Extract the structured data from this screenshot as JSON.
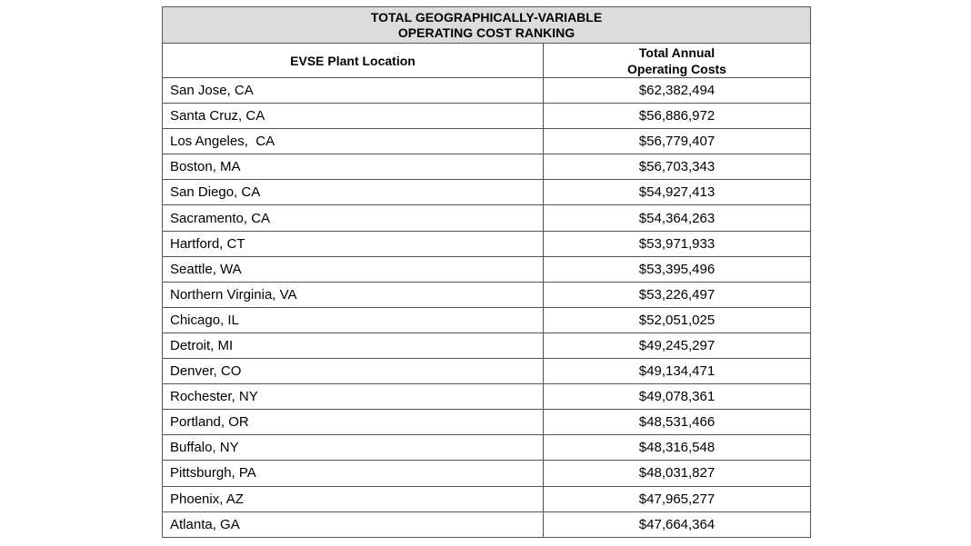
{
  "title": {
    "lines": [
      "TOTAL GEOGRAPHICALLY-VARIABLE",
      "OPERATING COST RANKING"
    ]
  },
  "columns": [
    {
      "lines": [
        "EVSE Plant Location"
      ]
    },
    {
      "lines": [
        "Total Annual",
        "Operating Costs"
      ]
    }
  ],
  "rows": [
    [
      "San Jose, CA",
      "$62,382,494"
    ],
    [
      "Santa Cruz, CA",
      "$56,886,972"
    ],
    [
      "Los Angeles,  CA",
      "$56,779,407"
    ],
    [
      "Boston, MA",
      "$56,703,343"
    ],
    [
      "San Diego, CA",
      "$54,927,413"
    ],
    [
      "Sacramento, CA",
      "$54,364,263"
    ],
    [
      "Hartford, CT",
      "$53,971,933"
    ],
    [
      "Seattle, WA",
      "$53,395,496"
    ],
    [
      "Northern Virginia, VA",
      "$53,226,497"
    ],
    [
      "Chicago, IL",
      "$52,051,025"
    ],
    [
      "Detroit, MI",
      "$49,245,297"
    ],
    [
      "Denver, CO",
      "$49,134,471"
    ],
    [
      "Rochester, NY",
      "$49,078,361"
    ],
    [
      "Portland, OR",
      "$48,531,466"
    ],
    [
      "Buffalo, NY",
      "$48,316,548"
    ],
    [
      "Pittsburgh, PA",
      "$48,031,827"
    ],
    [
      "Phoenix, AZ",
      "$47,965,277"
    ],
    [
      "Atlanta, GA",
      "$47,664,364"
    ]
  ]
}
